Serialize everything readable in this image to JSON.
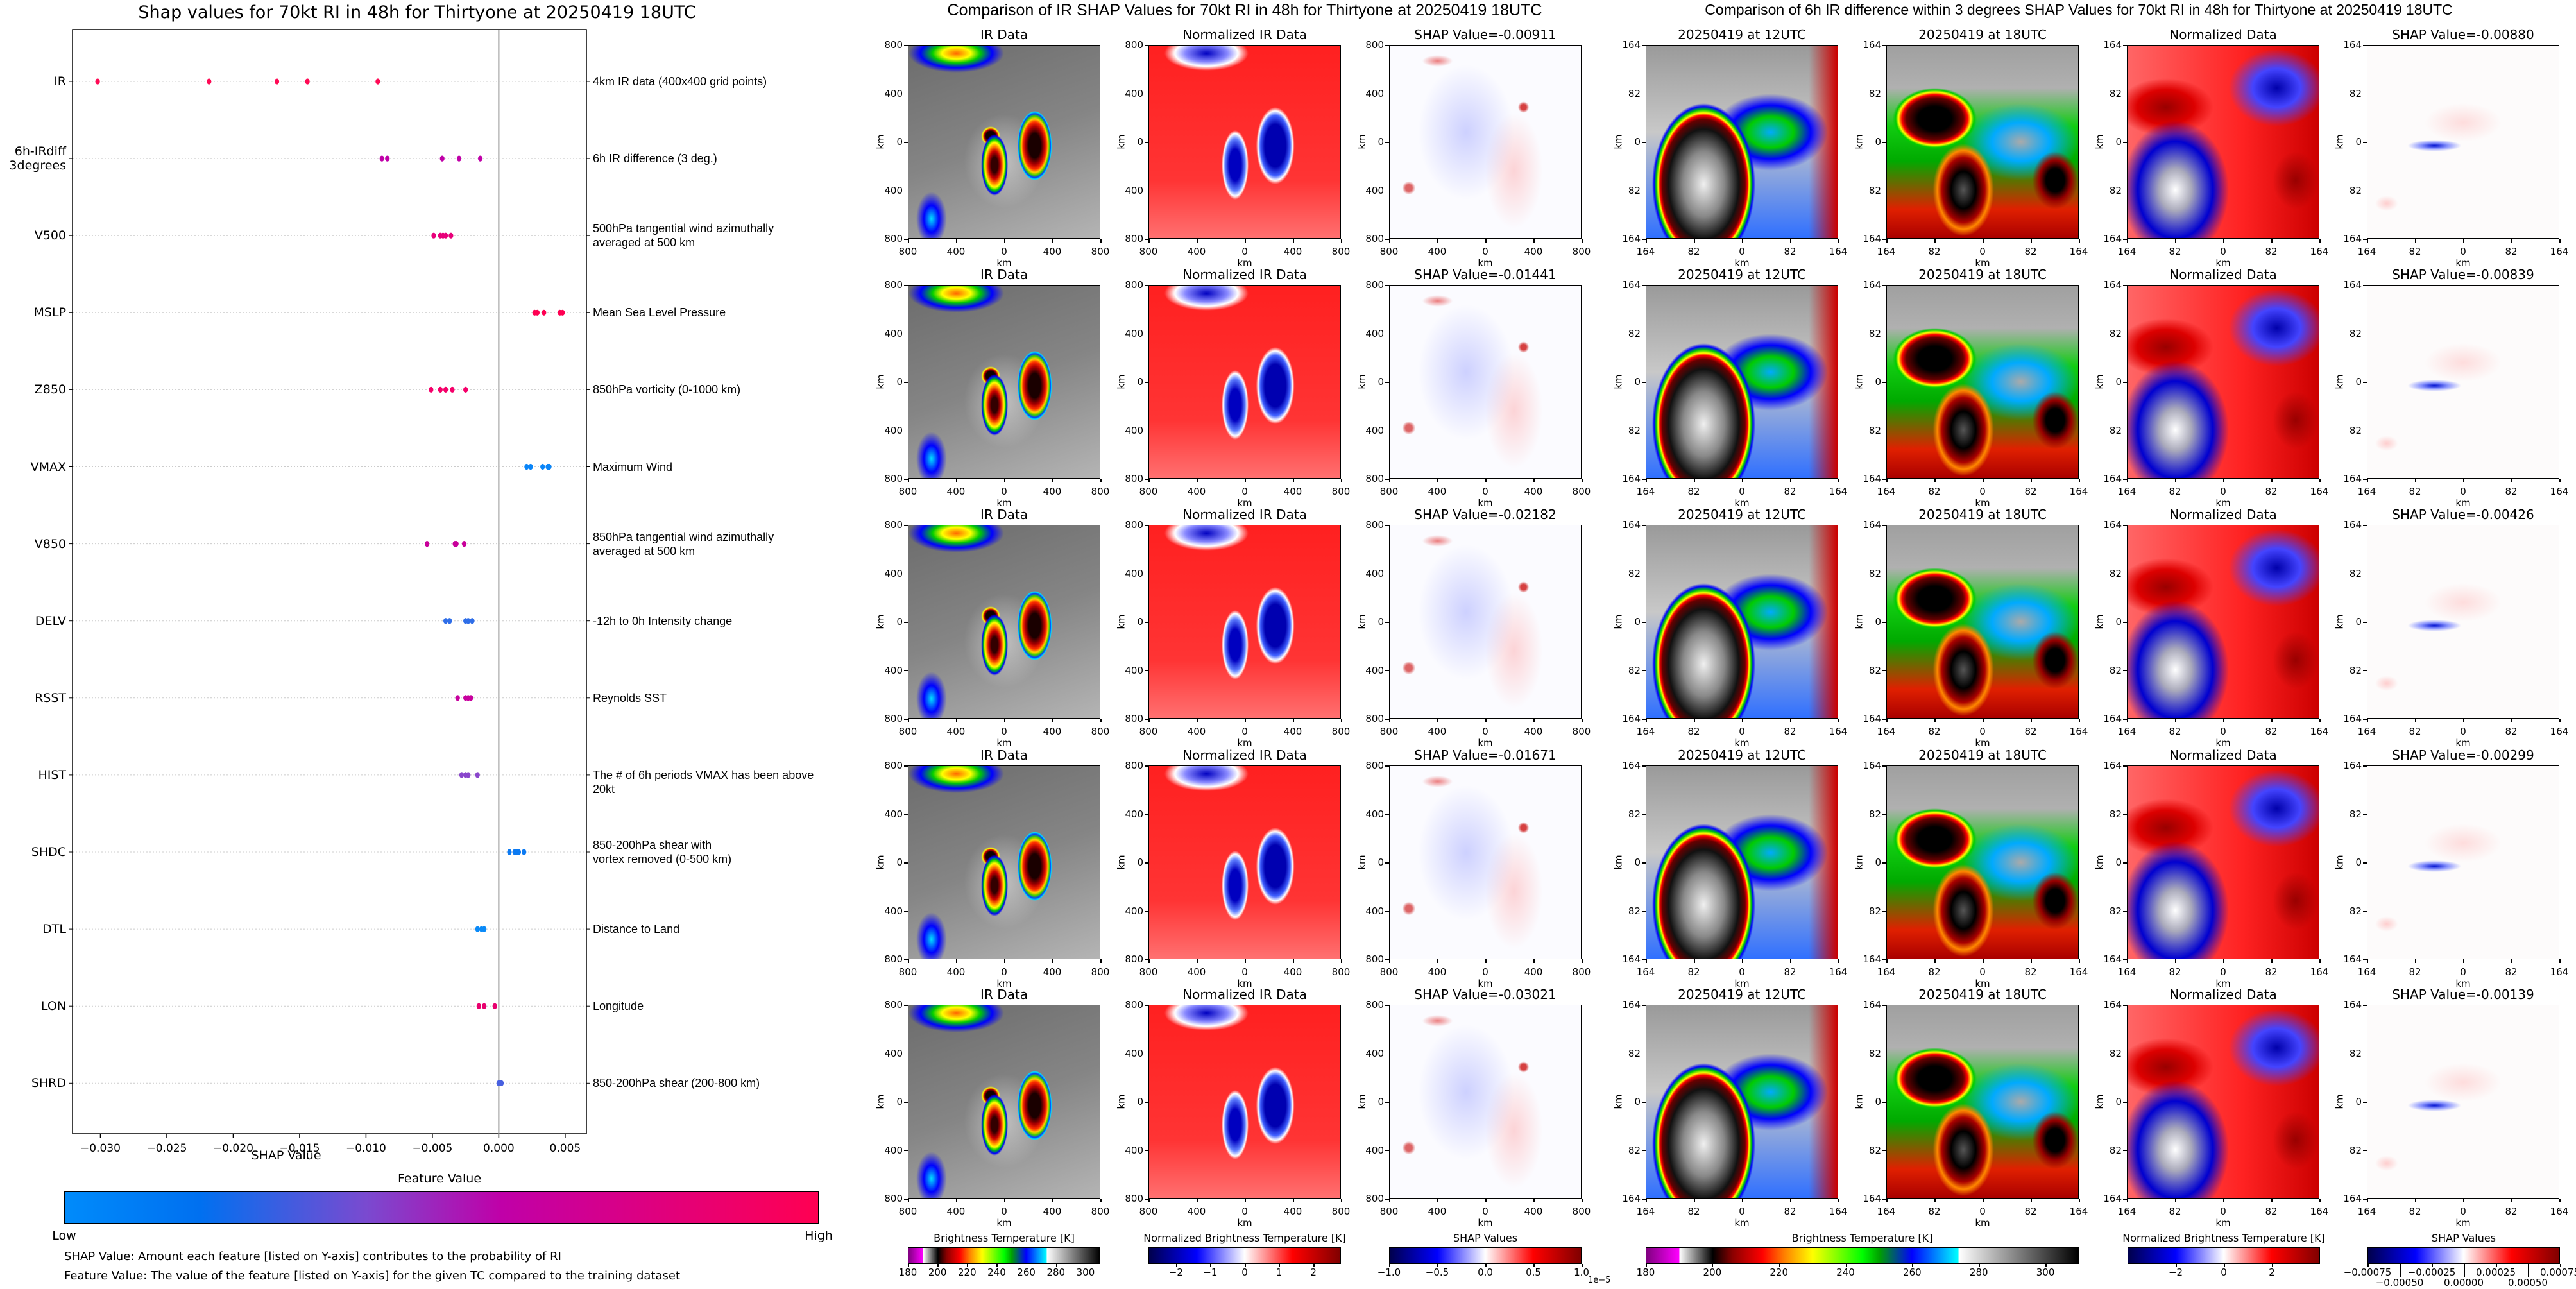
{
  "chart_data": {
    "type": "scatter",
    "title": "Shap values for 70kt RI in 48h for Thirtyone at 20250419 18UTC",
    "xlabel": "SHAP Value",
    "xlim": [
      -0.0321,
      0.0066
    ],
    "xticks": [
      {
        "v": -0.03,
        "label": "−0.030"
      },
      {
        "v": -0.025,
        "label": "−0.025"
      },
      {
        "v": -0.02,
        "label": "−0.020"
      },
      {
        "v": -0.015,
        "label": "−0.015"
      },
      {
        "v": -0.01,
        "label": "−0.010"
      },
      {
        "v": -0.005,
        "label": "−0.005"
      },
      {
        "v": 0,
        "label": "0.000"
      },
      {
        "v": 0.005,
        "label": "0.005"
      }
    ],
    "grid": "horizontal dotted",
    "features": [
      {
        "name": "IR",
        "description": "4km IR data (400x400 grid points)",
        "color": "#ff0a55",
        "values": [
          -0.03021,
          -0.02182,
          -0.01671,
          -0.01441,
          -0.00911
        ]
      },
      {
        "name": "6h-IRdiff\n3degrees",
        "description": "6h IR difference (3 deg.)",
        "color": "#c000a8",
        "values": [
          -0.0088,
          -0.00839,
          -0.00426,
          -0.00299,
          -0.00139
        ]
      },
      {
        "name": "V500",
        "description": "500hPa tangential wind azimuthally\naveraged at 500 km",
        "color": "#e8007a",
        "values": [
          -0.0049,
          -0.0044,
          -0.0042,
          -0.004,
          -0.0036
        ]
      },
      {
        "name": "MSLP",
        "description": "Mean Sea Level Pressure",
        "color": "#ff0052",
        "values": [
          0.0027,
          0.0029,
          0.0034,
          0.0046,
          0.0048
        ]
      },
      {
        "name": "Z850",
        "description": "850hPa vorticity (0-1000 km)",
        "color": "#f5006a",
        "values": [
          -0.0051,
          -0.0044,
          -0.004,
          -0.0035,
          -0.0025
        ]
      },
      {
        "name": "VMAX",
        "description": "Maximum Wind",
        "color": "#0a85f8",
        "values": [
          0.0021,
          0.0024,
          0.0033,
          0.0037,
          0.0038
        ]
      },
      {
        "name": "V850",
        "description": "850hPa tangential wind azimuthally\naveraged at 500 km",
        "color": "#c8009a",
        "values": [
          -0.0054,
          -0.0033,
          -0.0032,
          -0.0026
        ]
      },
      {
        "name": "DELV",
        "description": "-12h to 0h Intensity change",
        "color": "#2f6ee8",
        "values": [
          -0.004,
          -0.0037,
          -0.0025,
          -0.0023,
          -0.002
        ]
      },
      {
        "name": "RSST",
        "description": "Reynolds SST",
        "color": "#c8009e",
        "values": [
          -0.0031,
          -0.0025,
          -0.0023,
          -0.0021
        ]
      },
      {
        "name": "HIST",
        "description": "The # of 6h periods VMAX has been above 20kt",
        "color": "#8a46cc",
        "values": [
          -0.0028,
          -0.0025,
          -0.0023,
          -0.0016
        ]
      },
      {
        "name": "SHDC",
        "description": "850-200hPa shear with\nvortex removed (0-500 km)",
        "color": "#0c7af2",
        "values": [
          0.0008,
          0.0012,
          0.0014,
          0.0015,
          0.0019
        ]
      },
      {
        "name": "DTL",
        "description": "Distance to Land",
        "color": "#0a8af8",
        "values": [
          -0.0016,
          -0.0013,
          -0.0011
        ]
      },
      {
        "name": "LON",
        "description": "Longitude",
        "color": "#e8006e",
        "values": [
          -0.0015,
          -0.0011,
          -0.0003
        ]
      },
      {
        "name": "SHRD",
        "description": "850-200hPa shear (200-800 km)",
        "color": "#4860e0",
        "values": [
          0.0,
          0.0001,
          0.0002
        ]
      }
    ],
    "colorbar": {
      "label": "Feature Value",
      "low": "Low",
      "high": "High"
    },
    "notes": [
      "SHAP Value: Amount each feature [listed on Y-axis] contributes to the probability of RI",
      "Feature Value: The value of the feature [listed on Y-axis] for the given TC compared to the training dataset"
    ]
  },
  "ir_group": {
    "title": "Comparison of IR SHAP Values for 70kt RI in 48h for Thirtyone at 20250419 18UTC",
    "axis_label": "km",
    "ticks": [
      "800",
      "400",
      "0",
      "400",
      "800"
    ],
    "rows": [
      {
        "titles": [
          "IR Data",
          "Normalized IR Data",
          "SHAP Value=-0.00911"
        ]
      },
      {
        "titles": [
          "IR Data",
          "Normalized IR Data",
          "SHAP Value=-0.01441"
        ]
      },
      {
        "titles": [
          "IR Data",
          "Normalized IR Data",
          "SHAP Value=-0.02182"
        ]
      },
      {
        "titles": [
          "IR Data",
          "Normalized IR Data",
          "SHAP Value=-0.01671"
        ]
      },
      {
        "titles": [
          "IR Data",
          "Normalized IR Data",
          "SHAP Value=-0.03021"
        ]
      }
    ],
    "colorbars": [
      {
        "label": "Brightness Temperature [K]",
        "range": [
          180,
          310
        ],
        "ticks": [
          {
            "v": 180,
            "label": "180"
          },
          {
            "v": 200,
            "label": "200"
          },
          {
            "v": 220,
            "label": "220"
          },
          {
            "v": 240,
            "label": "240"
          },
          {
            "v": 260,
            "label": "260"
          },
          {
            "v": 280,
            "label": "280"
          },
          {
            "v": 300,
            "label": "300"
          }
        ]
      },
      {
        "label": "Normalized Brightness Temperature [K]",
        "range": [
          -2.8,
          2.8
        ],
        "ticks": [
          {
            "v": -2,
            "label": "−2"
          },
          {
            "v": -1,
            "label": "−1"
          },
          {
            "v": 0,
            "label": "0"
          },
          {
            "v": 1,
            "label": "1"
          },
          {
            "v": 2,
            "label": "2"
          }
        ]
      },
      {
        "label": "SHAP Values",
        "range": [
          -1,
          1
        ],
        "offset": "1e−5",
        "ticks": [
          {
            "v": -1,
            "label": "−1.0"
          },
          {
            "v": -0.5,
            "label": "−0.5"
          },
          {
            "v": 0,
            "label": "0.0"
          },
          {
            "v": 0.5,
            "label": "0.5"
          },
          {
            "v": 1,
            "label": "1.0"
          }
        ]
      }
    ]
  },
  "irdiff_group": {
    "title": "Comparison of 6h IR difference within 3 degrees SHAP Values for 70kt RI in 48h for Thirtyone at 20250419 18UTC",
    "axis_label": "km",
    "ticks": [
      "164",
      "82",
      "0",
      "82",
      "164"
    ],
    "rows": [
      {
        "titles": [
          "20250419 at 12UTC",
          "20250419 at 18UTC",
          "Normalized Data",
          "SHAP Value=-0.00880"
        ]
      },
      {
        "titles": [
          "20250419 at 12UTC",
          "20250419 at 18UTC",
          "Normalized Data",
          "SHAP Value=-0.00839"
        ]
      },
      {
        "titles": [
          "20250419 at 12UTC",
          "20250419 at 18UTC",
          "Normalized Data",
          "SHAP Value=-0.00426"
        ]
      },
      {
        "titles": [
          "20250419 at 12UTC",
          "20250419 at 18UTC",
          "Normalized Data",
          "SHAP Value=-0.00299"
        ]
      },
      {
        "titles": [
          "20250419 at 12UTC",
          "20250419 at 18UTC",
          "Normalized Data",
          "SHAP Value=-0.00139"
        ]
      }
    ],
    "colorbars": [
      {
        "label": "Brightness Temperature [K]",
        "range": [
          180,
          310
        ],
        "ticks": [
          {
            "v": 180,
            "label": "180"
          },
          {
            "v": 200,
            "label": "200"
          },
          {
            "v": 220,
            "label": "220"
          },
          {
            "v": 240,
            "label": "240"
          },
          {
            "v": 260,
            "label": "260"
          },
          {
            "v": 280,
            "label": "280"
          },
          {
            "v": 300,
            "label": "300"
          }
        ]
      },
      {
        "label": "Normalized Brightness Temperature [K]",
        "range": [
          -4,
          4
        ],
        "ticks": [
          {
            "v": -2,
            "label": "−2"
          },
          {
            "v": 0,
            "label": "0"
          },
          {
            "v": 2,
            "label": "2"
          }
        ]
      },
      {
        "label": "SHAP Values",
        "range": [
          -0.00075,
          0.00075
        ],
        "ticks": [
          {
            "v": -0.00075,
            "label": "−0.00075"
          },
          {
            "v": -0.0005,
            "label": "−0.00050"
          },
          {
            "v": -0.00025,
            "label": "−0.00025"
          },
          {
            "v": 0,
            "label": "0.00000"
          },
          {
            "v": 0.00025,
            "label": "0.00025"
          },
          {
            "v": 0.0005,
            "label": "0.00050"
          },
          {
            "v": 0.00075,
            "label": "0.00075"
          }
        ]
      }
    ]
  }
}
